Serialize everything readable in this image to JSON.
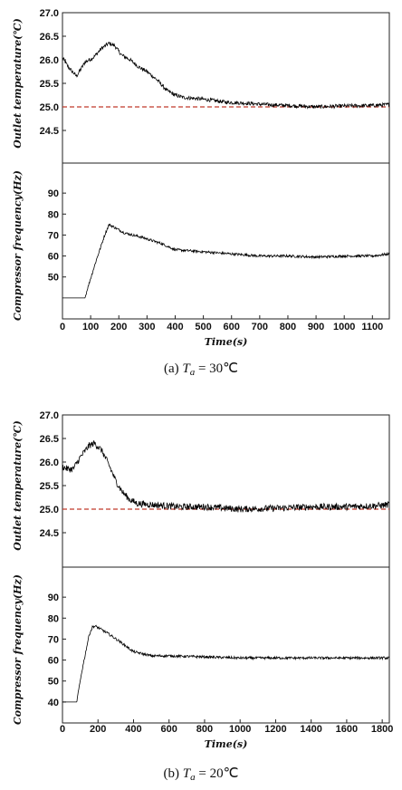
{
  "chart_data": [
    {
      "id": "a",
      "type": "line",
      "caption": {
        "label": "(a)",
        "var": "T",
        "sub": "a",
        "rest": "= 30℃"
      },
      "xlabel": "Time(s)",
      "xlim": [
        0,
        1160
      ],
      "xticks": [
        0,
        100,
        200,
        300,
        400,
        500,
        600,
        700,
        800,
        900,
        1000,
        1100
      ],
      "grid": false,
      "panels": [
        {
          "ylabel": "Outlet temperature(℃)",
          "ylim": [
            24.0,
            27.0
          ],
          "yticks": [
            "27.0",
            "26.5",
            "26.0",
            "25.5",
            "25.0",
            "24.5"
          ],
          "reference": {
            "y": 25.0,
            "color": "#c0392b",
            "style": "dashed"
          },
          "series": [
            {
              "color": "#000000",
              "x": [
                0,
                20,
                50,
                80,
                110,
                140,
                165,
                185,
                210,
                240,
                270,
                300,
                340,
                370,
                400,
                430,
                470,
                520,
                580,
                650,
                720,
                800,
                900,
                1000,
                1100,
                1160
              ],
              "y": [
                26.05,
                25.85,
                25.65,
                25.95,
                26.05,
                26.25,
                26.35,
                26.3,
                26.1,
                26.0,
                25.85,
                25.75,
                25.55,
                25.35,
                25.25,
                25.2,
                25.18,
                25.15,
                25.1,
                25.08,
                25.05,
                25.03,
                25.0,
                25.02,
                25.03,
                25.05
              ],
              "noise": 0.04
            }
          ]
        },
        {
          "ylabel": "Compressor frequency(Hz)",
          "ylim": [
            30,
            100
          ],
          "yticks": [
            "90",
            "80",
            "70",
            "60",
            "50"
          ],
          "series": [
            {
              "color": "#000000",
              "x": [
                0,
                80,
                90,
                120,
                150,
                165,
                180,
                220,
                280,
                350,
                400,
                500,
                600,
                700,
                800,
                900,
                1000,
                1100,
                1160
              ],
              "y": [
                40,
                40,
                45,
                58,
                70,
                75,
                74,
                71,
                69,
                66,
                63,
                62,
                61,
                60,
                60,
                59.5,
                60,
                60,
                61
              ],
              "noise": 0.6
            }
          ]
        }
      ]
    },
    {
      "id": "b",
      "type": "line",
      "caption": {
        "label": "(b)",
        "var": "T",
        "sub": "a",
        "rest": "= 20℃"
      },
      "xlabel": "Time(s)",
      "xlim": [
        0,
        1840
      ],
      "xticks": [
        0,
        200,
        400,
        600,
        800,
        1000,
        1200,
        1400,
        1600,
        1800
      ],
      "grid": false,
      "panels": [
        {
          "ylabel": "Outlet temperature(℃)",
          "ylim": [
            24.0,
            27.0
          ],
          "yticks": [
            "27.0",
            "26.5",
            "26.0",
            "25.5",
            "25.0",
            "24.5"
          ],
          "reference": {
            "y": 25.0,
            "color": "#c0392b",
            "style": "dashed"
          },
          "series": [
            {
              "color": "#000000",
              "x": [
                0,
                30,
                60,
                100,
                150,
                180,
                220,
                260,
                300,
                340,
                380,
                420,
                480,
                560,
                650,
                800,
                1000,
                1200,
                1400,
                1600,
                1800,
                1840
              ],
              "y": [
                25.9,
                25.85,
                25.85,
                26.1,
                26.35,
                26.4,
                26.25,
                25.95,
                25.6,
                25.35,
                25.2,
                25.12,
                25.1,
                25.08,
                25.05,
                25.05,
                25.0,
                25.02,
                25.05,
                25.05,
                25.08,
                25.1
              ],
              "noise": 0.07
            }
          ]
        },
        {
          "ylabel": "Compressor frequency(Hz)",
          "ylim": [
            30,
            100
          ],
          "yticks": [
            "90",
            "80",
            "70",
            "60",
            "50",
            "40"
          ],
          "series": [
            {
              "color": "#000000",
              "x": [
                0,
                80,
                110,
                150,
                170,
                190,
                250,
                320,
                400,
                500,
                600,
                800,
                1000,
                1200,
                1400,
                1600,
                1800,
                1840
              ],
              "y": [
                40,
                40,
                55,
                72,
                76,
                76,
                73,
                69,
                64,
                62,
                62,
                61.5,
                61,
                61,
                61,
                61,
                61,
                61
              ],
              "noise": 0.6
            }
          ]
        }
      ]
    }
  ]
}
